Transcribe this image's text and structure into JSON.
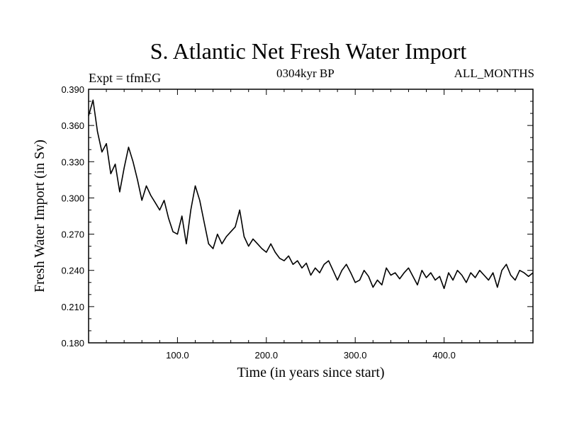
{
  "chart_data": {
    "type": "line",
    "title": "S. Atlantic Net Fresh Water Import",
    "subtitle_left": "Expt = tfmEG",
    "subtitle_center": "0304kyr BP",
    "subtitle_right": "ALL_MONTHS",
    "xlabel": "Time (in years since start)",
    "ylabel": "Fresh Water Import (in Sv)",
    "xlim": [
      0,
      500
    ],
    "ylim": [
      0.18,
      0.39
    ],
    "xticks": [
      100,
      200,
      300,
      400
    ],
    "xtick_labels": [
      "100.0",
      "200.0",
      "300.0",
      "400.0"
    ],
    "yticks": [
      0.18,
      0.21,
      0.24,
      0.27,
      0.3,
      0.33,
      0.36,
      0.39
    ],
    "ytick_labels": [
      "0.180",
      "0.210",
      "0.240",
      "0.270",
      "0.300",
      "0.330",
      "0.360",
      "0.390"
    ],
    "series": [
      {
        "name": "Fresh Water Import",
        "x": [
          0,
          5,
          10,
          15,
          20,
          25,
          30,
          35,
          40,
          45,
          50,
          55,
          60,
          65,
          70,
          75,
          80,
          85,
          90,
          95,
          100,
          105,
          110,
          115,
          120,
          125,
          130,
          135,
          140,
          145,
          150,
          155,
          160,
          165,
          170,
          175,
          180,
          185,
          190,
          195,
          200,
          205,
          210,
          215,
          220,
          225,
          230,
          235,
          240,
          245,
          250,
          255,
          260,
          265,
          270,
          275,
          280,
          285,
          290,
          295,
          300,
          305,
          310,
          315,
          320,
          325,
          330,
          335,
          340,
          345,
          350,
          355,
          360,
          365,
          370,
          375,
          380,
          385,
          390,
          395,
          400,
          405,
          410,
          415,
          420,
          425,
          430,
          435,
          440,
          445,
          450,
          455,
          460,
          465,
          470,
          475,
          480,
          485,
          490,
          495,
          500
        ],
        "values": [
          0.368,
          0.381,
          0.355,
          0.338,
          0.345,
          0.32,
          0.328,
          0.305,
          0.325,
          0.342,
          0.33,
          0.315,
          0.298,
          0.31,
          0.302,
          0.296,
          0.29,
          0.298,
          0.283,
          0.272,
          0.27,
          0.285,
          0.262,
          0.29,
          0.31,
          0.298,
          0.28,
          0.262,
          0.258,
          0.27,
          0.262,
          0.268,
          0.272,
          0.276,
          0.29,
          0.268,
          0.26,
          0.266,
          0.262,
          0.258,
          0.255,
          0.262,
          0.255,
          0.25,
          0.248,
          0.252,
          0.245,
          0.248,
          0.242,
          0.246,
          0.236,
          0.242,
          0.238,
          0.245,
          0.248,
          0.24,
          0.232,
          0.24,
          0.245,
          0.238,
          0.23,
          0.232,
          0.24,
          0.235,
          0.226,
          0.232,
          0.228,
          0.242,
          0.236,
          0.238,
          0.233,
          0.238,
          0.242,
          0.235,
          0.228,
          0.24,
          0.234,
          0.238,
          0.232,
          0.235,
          0.225,
          0.238,
          0.232,
          0.24,
          0.236,
          0.23,
          0.238,
          0.234,
          0.24,
          0.236,
          0.232,
          0.238,
          0.226,
          0.24,
          0.245,
          0.236,
          0.232,
          0.24,
          0.238,
          0.235,
          0.238
        ]
      }
    ]
  }
}
